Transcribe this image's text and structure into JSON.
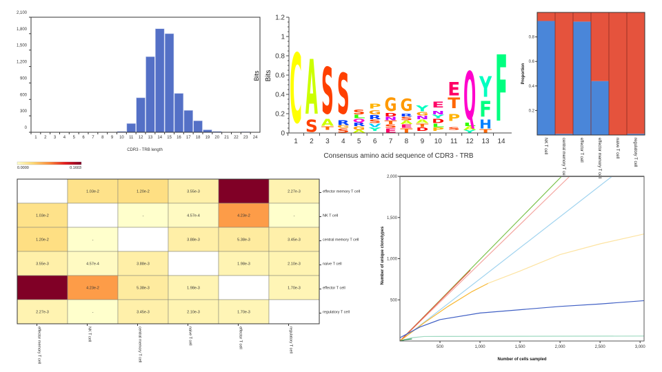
{
  "chart_data": [
    {
      "id": "length_hist",
      "type": "bar",
      "title": "",
      "xlabel": "CDR3 - TRB length",
      "ylabel": "",
      "stray_label": "Bits",
      "categories": [
        "1",
        "2",
        "3",
        "4",
        "5",
        "6",
        "7",
        "8",
        "9",
        "10",
        "11",
        "12",
        "13",
        "14",
        "15",
        "16",
        "17",
        "18",
        "19",
        "20",
        "21",
        "22",
        "23",
        "24"
      ],
      "values": [
        0,
        0,
        0,
        0,
        0,
        0,
        0,
        0,
        0,
        15,
        160,
        630,
        1380,
        1890,
        1800,
        710,
        400,
        210,
        45,
        15,
        0,
        0,
        10,
        0
      ],
      "yticks": [
        0,
        300,
        600,
        900,
        1200,
        1500,
        1800,
        2100
      ],
      "ytick_labels": [
        "0",
        "300",
        "600",
        "900",
        "1,200",
        "1,500",
        "1,800",
        "2,100"
      ],
      "ylim": [
        0,
        2100
      ],
      "color": "#5470c6"
    },
    {
      "id": "seq_logo",
      "type": "logo",
      "xlabel": "Consensus amino acid sequence of CDR3 - TRB",
      "ylabel": "Bits",
      "ylim": [
        0,
        1.2
      ],
      "yticks": [
        "0",
        "0.2",
        "0.4",
        "0.6",
        "0.8",
        "1",
        "1.2"
      ],
      "positions": [
        "1",
        "2",
        "3",
        "4",
        "5",
        "6",
        "7",
        "8",
        "9",
        "10",
        "11",
        "12",
        "13",
        "14"
      ],
      "stacks": [
        [
          [
            "C",
            0.06,
            0.9
          ]
        ],
        [
          [
            "S",
            0.0,
            0.15
          ],
          [
            "A",
            0.16,
            0.82
          ]
        ],
        [
          [
            "T",
            0.03,
            0.07
          ],
          [
            "A",
            0.07,
            0.15
          ],
          [
            "S",
            0.17,
            0.73
          ]
        ],
        [
          [
            "S",
            0.0,
            0.05
          ],
          [
            "G",
            0.05,
            0.08
          ],
          [
            "R",
            0.08,
            0.14
          ],
          [
            "S",
            0.17,
            0.66
          ]
        ],
        [
          [
            "A",
            0.0,
            0.03
          ],
          [
            "G",
            0.03,
            0.07
          ],
          [
            "R",
            0.07,
            0.11
          ],
          [
            "Q",
            0.11,
            0.15
          ],
          [
            "L",
            0.15,
            0.19
          ],
          [
            "S",
            0.19,
            0.25
          ]
        ],
        [
          [
            "Y",
            0.02,
            0.06
          ],
          [
            "V",
            0.06,
            0.1
          ],
          [
            "S",
            0.1,
            0.14
          ],
          [
            "R",
            0.14,
            0.19
          ],
          [
            "G",
            0.19,
            0.24
          ],
          [
            "P",
            0.25,
            0.31
          ]
        ],
        [
          [
            "E",
            0.0,
            0.05
          ],
          [
            "S",
            0.05,
            0.09
          ],
          [
            "T",
            0.09,
            0.13
          ],
          [
            "N",
            0.13,
            0.17
          ],
          [
            "D",
            0.17,
            0.21
          ],
          [
            "G",
            0.22,
            0.38
          ]
        ],
        [
          [
            "T",
            0.0,
            0.05
          ],
          [
            "E",
            0.05,
            0.09
          ],
          [
            "A",
            0.09,
            0.13
          ],
          [
            "S",
            0.13,
            0.17
          ],
          [
            "R",
            0.17,
            0.2
          ],
          [
            "G",
            0.22,
            0.37
          ]
        ],
        [
          [
            "D",
            0.02,
            0.06
          ],
          [
            "T",
            0.06,
            0.1
          ],
          [
            "A",
            0.1,
            0.14
          ],
          [
            "N",
            0.14,
            0.18
          ],
          [
            "G",
            0.18,
            0.22
          ],
          [
            "Y",
            0.22,
            0.29
          ]
        ],
        [
          [
            "P",
            0.02,
            0.06
          ],
          [
            "L",
            0.06,
            0.1
          ],
          [
            "D",
            0.1,
            0.15
          ],
          [
            "Y",
            0.15,
            0.19
          ],
          [
            "N",
            0.19,
            0.23
          ],
          [
            "E",
            0.26,
            0.33
          ]
        ],
        [
          [
            "S",
            0.03,
            0.06
          ],
          [
            "P",
            0.12,
            0.2
          ],
          [
            "T",
            0.25,
            0.38
          ],
          [
            "E",
            0.38,
            0.54
          ]
        ],
        [
          [
            "Y",
            0.0,
            0.03
          ],
          [
            "A",
            0.03,
            0.07
          ],
          [
            "L",
            0.07,
            0.11
          ],
          [
            "Q",
            0.11,
            0.69
          ]
        ],
        [
          [
            "T",
            0.0,
            0.04
          ],
          [
            "H",
            0.04,
            0.15
          ],
          [
            "F",
            0.16,
            0.35
          ],
          [
            "Y",
            0.36,
            0.61
          ]
        ],
        [
          [
            "F",
            0.08,
            0.88
          ]
        ]
      ],
      "letter_colors": {
        "C": "#ffff00",
        "A": "#ccff00",
        "S": "#ff4000",
        "T": "#ff6600",
        "R": "#0040ff",
        "G": "#ff9900",
        "P": "#ffb300",
        "D": "#ff0000",
        "E": "#ff0066",
        "Q": "#ff00cc",
        "Y": "#00ffc0",
        "F": "#00ff80",
        "H": "#0080ff",
        "L": "#33ff00",
        "N": "#cc00ff",
        "V": "#00ccff"
      }
    },
    {
      "id": "proportion",
      "type": "bar",
      "stacked": true,
      "ylabel": "Proportion",
      "categories": [
        "NK T cell",
        "central memory T cell",
        "effector T cell",
        "effector memory T cell",
        "naive T cell",
        "regulatory T cell"
      ],
      "series": [
        {
          "name": "blue",
          "color": "#4a86d9",
          "values": [
            0.93,
            0.01,
            0.925,
            0.44,
            0.0,
            0.01
          ]
        },
        {
          "name": "red",
          "color": "#e5533d",
          "values": [
            0.07,
            0.99,
            0.075,
            0.56,
            1.0,
            0.99
          ]
        }
      ],
      "yticks": [
        0.2,
        0.4,
        0.6,
        0.8
      ],
      "ytick_labels": [
        "0.2",
        "0.4",
        "0.6",
        "0.8"
      ],
      "ylim": [
        0,
        1
      ]
    },
    {
      "id": "overlap_heatmap",
      "type": "heatmap",
      "colorbar": {
        "min": 0,
        "max": 0.1603,
        "min_label": "0.0000",
        "max_label": "0.1603",
        "colors": [
          "#ffffcc",
          "#fed976",
          "#fd8d3c",
          "#e31a1c",
          "#800026"
        ]
      },
      "columns": [
        "effector memory T cell",
        "NK T cell",
        "central memory T cell",
        "naive T cell",
        "effector T cell",
        "regulatory T cell"
      ],
      "rows": [
        "effector memory T cell",
        "NK T cell",
        "central memory T cell",
        "naive T cell",
        "effector T cell",
        "regulatory T cell"
      ],
      "values": [
        [
          null,
          0.0103,
          0.012,
          0.00355,
          0.1603,
          0.00227
        ],
        [
          0.0103,
          null,
          0,
          0.000457,
          0.0423,
          0
        ],
        [
          0.012,
          0,
          null,
          0.00388,
          0.00538,
          0.00345
        ],
        [
          0.00355,
          0.000457,
          0.00388,
          null,
          0.00198,
          0.0021
        ],
        [
          0.1603,
          0.0423,
          0.00538,
          0.00198,
          null,
          0.0017
        ],
        [
          0.00227,
          0,
          0.00345,
          0.0021,
          0.0017,
          null
        ]
      ],
      "labels": [
        [
          "",
          "1.03e-2",
          "1.20e-2",
          "3.55e-3",
          "",
          "2.27e-3"
        ],
        [
          "1.03e-2",
          "",
          "-",
          "4.57e-4",
          "4.23e-2",
          "-"
        ],
        [
          "1.20e-2",
          "-",
          "",
          "3.88e-3",
          "5.38e-3",
          "3.45e-3"
        ],
        [
          "3.55e-3",
          "4.57e-4",
          "3.88e-3",
          "",
          "1.98e-3",
          "2.10e-3"
        ],
        [
          "",
          "4.23e-2",
          "5.38e-3",
          "1.98e-3",
          "",
          "1.70e-3"
        ],
        [
          "2.27e-3",
          "-",
          "3.45e-3",
          "2.10e-3",
          "1.70e-3",
          ""
        ]
      ]
    },
    {
      "id": "rarefaction",
      "type": "line",
      "xlabel": "Number of cells sampled",
      "ylabel": "Number of unique clonotypes",
      "xlim": [
        0,
        3050
      ],
      "ylim": [
        0,
        2000
      ],
      "xticks": [
        500,
        1000,
        1500,
        2000,
        2500,
        3000
      ],
      "xtick_labels": [
        "500",
        "1,000",
        "1,500",
        "2,000",
        "2,500",
        "3,000"
      ],
      "yticks": [
        500,
        1000,
        1500,
        2000
      ],
      "ytick_labels": [
        "500",
        "1,000",
        "1,500",
        "2,000"
      ],
      "series": [
        {
          "name": "light blue",
          "color": "#9fd3ef",
          "x": [
            0,
            2650
          ],
          "y": [
            0,
            2000
          ]
        },
        {
          "name": "pink",
          "color": "#f4a6a0",
          "x": [
            0,
            2120
          ],
          "y": [
            0,
            2000
          ]
        },
        {
          "name": "green",
          "color": "#7bc24a",
          "x": [
            0,
            2020
          ],
          "y": [
            0,
            2000
          ]
        },
        {
          "name": "red",
          "color": "#e5533d",
          "x": [
            0,
            880
          ],
          "y": [
            0,
            860
          ]
        },
        {
          "name": "orange light",
          "color": "#fde3a0",
          "x": [
            1100,
            1500,
            2000,
            2500,
            3050
          ],
          "y": [
            700,
            850,
            1050,
            1180,
            1300
          ]
        },
        {
          "name": "orange",
          "color": "#f7b733",
          "x": [
            0,
            300,
            600,
            900,
            1100
          ],
          "y": [
            0,
            220,
            420,
            600,
            700
          ]
        },
        {
          "name": "blue",
          "color": "#3f5fc4",
          "x": [
            0,
            250,
            500,
            1000,
            1500,
            2000,
            2500,
            3050
          ],
          "y": [
            40,
            170,
            260,
            340,
            380,
            420,
            450,
            490
          ]
        },
        {
          "name": "teal",
          "color": "#9ed9c0",
          "x": [
            0,
            150,
            300,
            3050
          ],
          "y": [
            0,
            40,
            55,
            60
          ]
        },
        {
          "name": "dark green",
          "color": "#2a8a4a",
          "x": [
            0,
            60,
            150
          ],
          "y": [
            0,
            15,
            25
          ]
        }
      ]
    }
  ]
}
